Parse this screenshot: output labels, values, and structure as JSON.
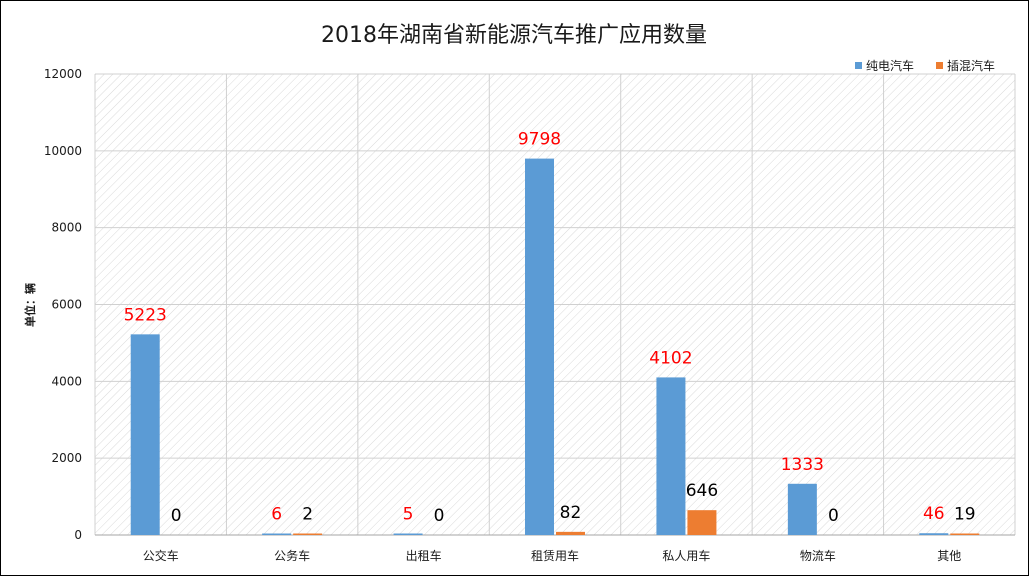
{
  "chart_data": {
    "type": "bar",
    "title": "2018年湖南省新能源汽车推广应用数量",
    "ylabel": "单位：辆",
    "xlabel": "",
    "categories": [
      "公交车",
      "公务车",
      "出租车",
      "租赁用车",
      "私人用车",
      "物流车",
      "其他"
    ],
    "series": [
      {
        "name": "纯电汽车",
        "values": [
          5223,
          6,
          5,
          9798,
          4102,
          1333,
          46
        ],
        "color": "#5b9bd5",
        "label_color": "#ff0000"
      },
      {
        "name": "插混汽车",
        "values": [
          0,
          2,
          0,
          82,
          646,
          0,
          19
        ],
        "color": "#ed7d31",
        "label_color": "#000000"
      }
    ],
    "ylim": [
      0,
      12000
    ],
    "yticks": [
      0,
      2000,
      4000,
      6000,
      8000,
      10000,
      12000
    ],
    "grid": true,
    "legend": "top-right"
  }
}
